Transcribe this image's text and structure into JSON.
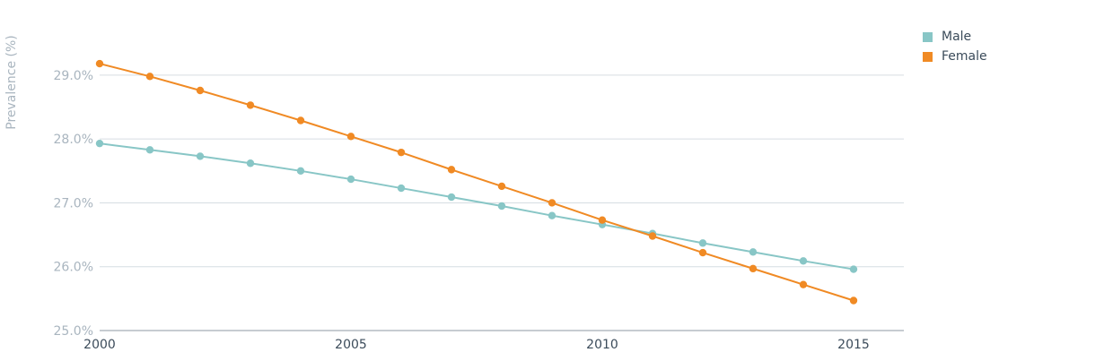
{
  "chart_data": {
    "type": "line",
    "title": "",
    "xlabel": "",
    "ylabel": "Prevalence (%)",
    "x": [
      2000,
      2001,
      2002,
      2003,
      2004,
      2005,
      2006,
      2007,
      2008,
      2009,
      2010,
      2011,
      2012,
      2013,
      2014,
      2015
    ],
    "xlim": [
      2000,
      2016
    ],
    "ylim": [
      25,
      29.7
    ],
    "xticks": [
      2000,
      2005,
      2010,
      2015
    ],
    "xtick_labels": [
      "2000",
      "2005",
      "2010",
      "2015"
    ],
    "yticks": [
      25,
      26,
      27,
      28,
      29
    ],
    "ytick_labels": [
      "25.0%",
      "26.0%",
      "27.0%",
      "28.0%",
      "29.0%"
    ],
    "grid": true,
    "legend_position": "top-right",
    "series": [
      {
        "name": "Male",
        "color": "#88c6c6",
        "values": [
          27.93,
          27.83,
          27.73,
          27.62,
          27.5,
          27.37,
          27.23,
          27.09,
          26.95,
          26.8,
          26.66,
          26.52,
          26.37,
          26.23,
          26.09,
          25.96
        ]
      },
      {
        "name": "Female",
        "color": "#f08a24",
        "values": [
          29.18,
          28.98,
          28.76,
          28.53,
          28.29,
          28.04,
          27.79,
          27.52,
          27.26,
          27.0,
          26.73,
          26.48,
          26.22,
          25.97,
          25.72,
          25.47
        ]
      }
    ]
  }
}
